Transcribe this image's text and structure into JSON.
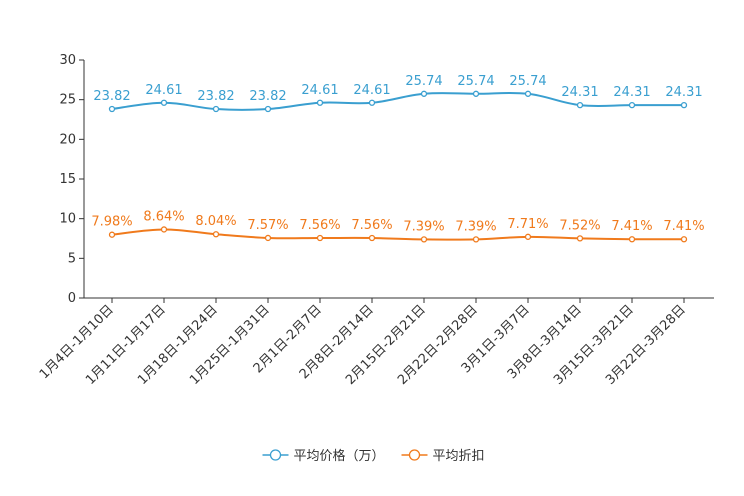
{
  "chart_data": {
    "type": "line",
    "categories": [
      "1月4日-1月10日",
      "1月11日-1月17日",
      "1月18日-1月24日",
      "1月25日-1月31日",
      "2月1日-2月7日",
      "2月8日-2月14日",
      "2月15日-2月21日",
      "2月22日-2月28日",
      "3月1日-3月7日",
      "3月8日-3月14日",
      "3月15日-3月21日",
      "3月22日-3月28日"
    ],
    "series": [
      {
        "name": "平均价格（万）",
        "color": "#3a9fd0",
        "values": [
          23.82,
          24.61,
          23.82,
          23.82,
          24.61,
          24.61,
          25.74,
          25.74,
          25.74,
          24.31,
          24.31,
          24.31
        ],
        "labels": [
          "23.82",
          "24.61",
          "23.82",
          "23.82",
          "24.61",
          "24.61",
          "25.74",
          "25.74",
          "25.74",
          "24.31",
          "24.31",
          "24.31"
        ]
      },
      {
        "name": "平均折扣",
        "color": "#f07a1c",
        "values": [
          7.98,
          8.64,
          8.04,
          7.57,
          7.56,
          7.56,
          7.39,
          7.39,
          7.71,
          7.52,
          7.41,
          7.41
        ],
        "labels": [
          "7.98%",
          "8.64%",
          "8.04%",
          "7.57%",
          "7.56%",
          "7.56%",
          "7.39%",
          "7.39%",
          "7.71%",
          "7.52%",
          "7.41%",
          "7.41%"
        ]
      }
    ],
    "yticks": [
      "0",
      "5",
      "10",
      "15",
      "20",
      "25",
      "30"
    ],
    "ylim": [
      0,
      30
    ],
    "title": "",
    "xlabel": "",
    "ylabel": "",
    "legend_position": "bottom-center"
  }
}
